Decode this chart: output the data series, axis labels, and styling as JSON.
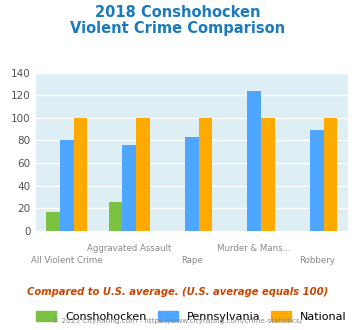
{
  "title_line1": "2018 Conshohocken",
  "title_line2": "Violent Crime Comparison",
  "title_color": "#1a7abf",
  "cat_top": [
    "",
    "Aggravated Assault",
    "",
    "Murder & Mans...",
    ""
  ],
  "cat_bot": [
    "All Violent Crime",
    "",
    "Rape",
    "",
    "Robbery"
  ],
  "conshohocken": [
    17,
    26,
    0,
    0,
    0
  ],
  "pennsylvania": [
    80,
    76,
    83,
    124,
    89
  ],
  "national": [
    100,
    100,
    100,
    100,
    100
  ],
  "color_conshohocken": "#7bc242",
  "color_pennsylvania": "#4da6ff",
  "color_national": "#ffaa00",
  "ylim": [
    0,
    140
  ],
  "yticks": [
    0,
    20,
    40,
    60,
    80,
    100,
    120,
    140
  ],
  "background_color": "#ddeef5",
  "grid_color": "#ffffff",
  "note": "Compared to U.S. average. (U.S. average equals 100)",
  "note_color": "#cc4400",
  "footer": "© 2025 CityRating.com - https://www.cityrating.com/crime-statistics/",
  "footer_color": "#888888",
  "legend_labels": [
    "Conshohocken",
    "Pennsylvania",
    "National"
  ]
}
